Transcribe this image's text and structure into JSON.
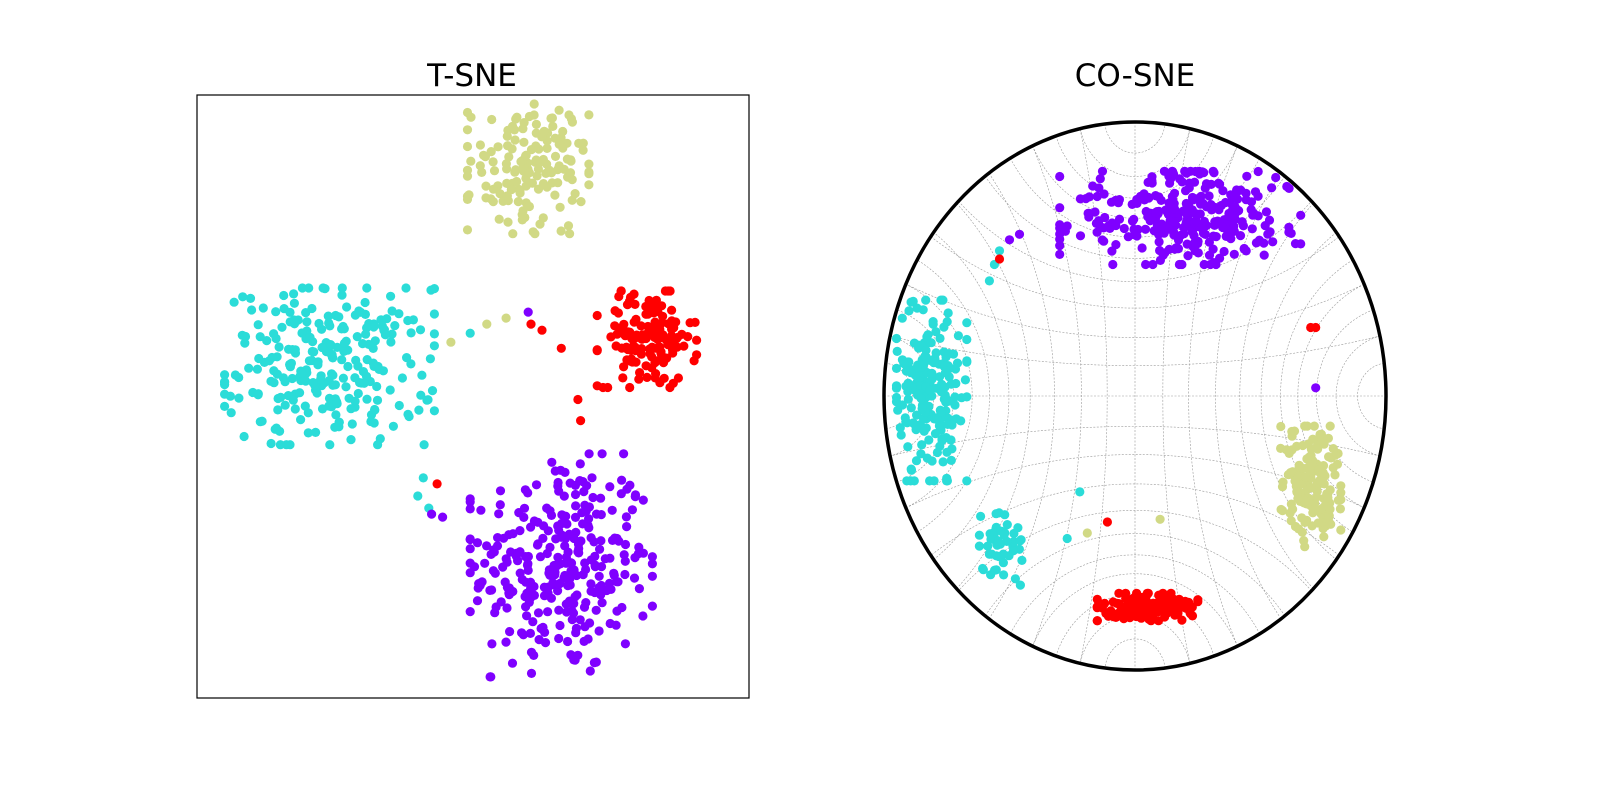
{
  "colors": {
    "purple": "#7f00ff",
    "cyan": "#2bdcd8",
    "khaki": "#d1d985",
    "red": "#ff0000"
  },
  "chart_data": [
    {
      "type": "scatter",
      "title": "T-SNE",
      "xlabel": "",
      "ylabel": "",
      "xlim": [
        -1,
        1
      ],
      "ylim": [
        -1,
        1
      ],
      "axes_ticks": false,
      "frame": "square",
      "grid": false,
      "clusters": [
        {
          "color": "purple",
          "n": 300,
          "cx": 0.32,
          "cy": -0.56,
          "rx": 0.33,
          "ry": 0.37
        },
        {
          "color": "cyan",
          "n": 260,
          "cx": -0.52,
          "cy": 0.1,
          "rx": 0.38,
          "ry": 0.26
        },
        {
          "color": "khaki",
          "n": 150,
          "cx": 0.2,
          "cy": 0.76,
          "rx": 0.22,
          "ry": 0.22
        },
        {
          "color": "red",
          "n": 140,
          "cx": 0.63,
          "cy": 0.19,
          "rx": 0.18,
          "ry": 0.16
        }
      ],
      "points": [
        {
          "x": -0.13,
          "y": -0.29,
          "color": "red"
        },
        {
          "x": 0.38,
          "y": -0.01,
          "color": "red"
        },
        {
          "x": 0.39,
          "y": -0.08,
          "color": "red"
        },
        {
          "x": 0.2,
          "y": 0.28,
          "color": "purple"
        },
        {
          "x": 0.21,
          "y": 0.24,
          "color": "red"
        },
        {
          "x": 0.25,
          "y": 0.22,
          "color": "red"
        },
        {
          "x": 0.32,
          "y": 0.16,
          "color": "red"
        },
        {
          "x": 0.12,
          "y": 0.26,
          "color": "khaki"
        },
        {
          "x": 0.05,
          "y": 0.24,
          "color": "khaki"
        },
        {
          "x": -0.01,
          "y": 0.21,
          "color": "cyan"
        },
        {
          "x": -0.08,
          "y": 0.18,
          "color": "khaki"
        },
        {
          "x": -0.18,
          "y": -0.27,
          "color": "cyan"
        },
        {
          "x": -0.2,
          "y": -0.33,
          "color": "cyan"
        },
        {
          "x": -0.16,
          "y": -0.37,
          "color": "cyan"
        },
        {
          "x": -0.15,
          "y": -0.39,
          "color": "purple"
        },
        {
          "x": -0.11,
          "y": -0.4,
          "color": "purple"
        }
      ]
    },
    {
      "type": "scatter",
      "title": "CO-SNE",
      "xlabel": "",
      "ylabel": "",
      "xlim": [
        -1,
        1
      ],
      "ylim": [
        -1,
        1
      ],
      "axes_ticks": false,
      "frame": "poincare-disk",
      "grid": true,
      "clusters": [
        {
          "color": "purple",
          "n": 300,
          "cx": 0.18,
          "cy": 0.65,
          "rx": 0.48,
          "ry": 0.17
        },
        {
          "color": "cyan",
          "n": 200,
          "cx": -0.81,
          "cy": 0.02,
          "rx": 0.14,
          "ry": 0.33
        },
        {
          "color": "cyan",
          "n": 50,
          "cx": -0.53,
          "cy": -0.55,
          "rx": 0.09,
          "ry": 0.14
        },
        {
          "color": "red",
          "n": 150,
          "cx": 0.05,
          "cy": -0.77,
          "rx": 0.2,
          "ry": 0.05
        },
        {
          "color": "khaki",
          "n": 150,
          "cx": 0.7,
          "cy": -0.33,
          "rx": 0.12,
          "ry": 0.22
        }
      ],
      "points": [
        {
          "x": -0.58,
          "y": 0.42,
          "color": "cyan"
        },
        {
          "x": -0.56,
          "y": 0.48,
          "color": "cyan"
        },
        {
          "x": -0.54,
          "y": 0.53,
          "color": "cyan"
        },
        {
          "x": -0.54,
          "y": 0.5,
          "color": "red"
        },
        {
          "x": -0.5,
          "y": 0.57,
          "color": "purple"
        },
        {
          "x": -0.46,
          "y": 0.59,
          "color": "purple"
        },
        {
          "x": 0.7,
          "y": 0.25,
          "color": "red"
        },
        {
          "x": 0.72,
          "y": 0.25,
          "color": "red"
        },
        {
          "x": 0.72,
          "y": 0.03,
          "color": "purple"
        },
        {
          "x": -0.11,
          "y": -0.46,
          "color": "red"
        },
        {
          "x": 0.1,
          "y": -0.45,
          "color": "khaki"
        },
        {
          "x": -0.19,
          "y": -0.5,
          "color": "khaki"
        },
        {
          "x": -0.27,
          "y": -0.52,
          "color": "cyan"
        },
        {
          "x": -0.22,
          "y": -0.35,
          "color": "cyan"
        }
      ]
    }
  ]
}
